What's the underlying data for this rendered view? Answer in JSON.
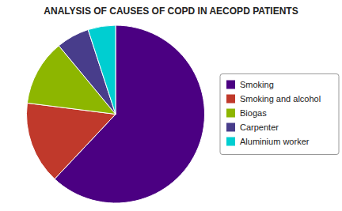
{
  "chart_data": {
    "type": "pie",
    "title": "ANALYSIS OF CAUSES OF COPD IN AECOPD PATIENTS",
    "categories": [
      "Smoking",
      "Smoking and alcohol",
      "Biogas",
      "Carpenter",
      "Aluminium worker"
    ],
    "values": [
      62,
      15,
      12,
      6,
      5
    ],
    "colors": [
      "#4B0082",
      "#C0392B",
      "#8DB600",
      "#483D8B",
      "#00CED1"
    ],
    "legend": "right"
  }
}
